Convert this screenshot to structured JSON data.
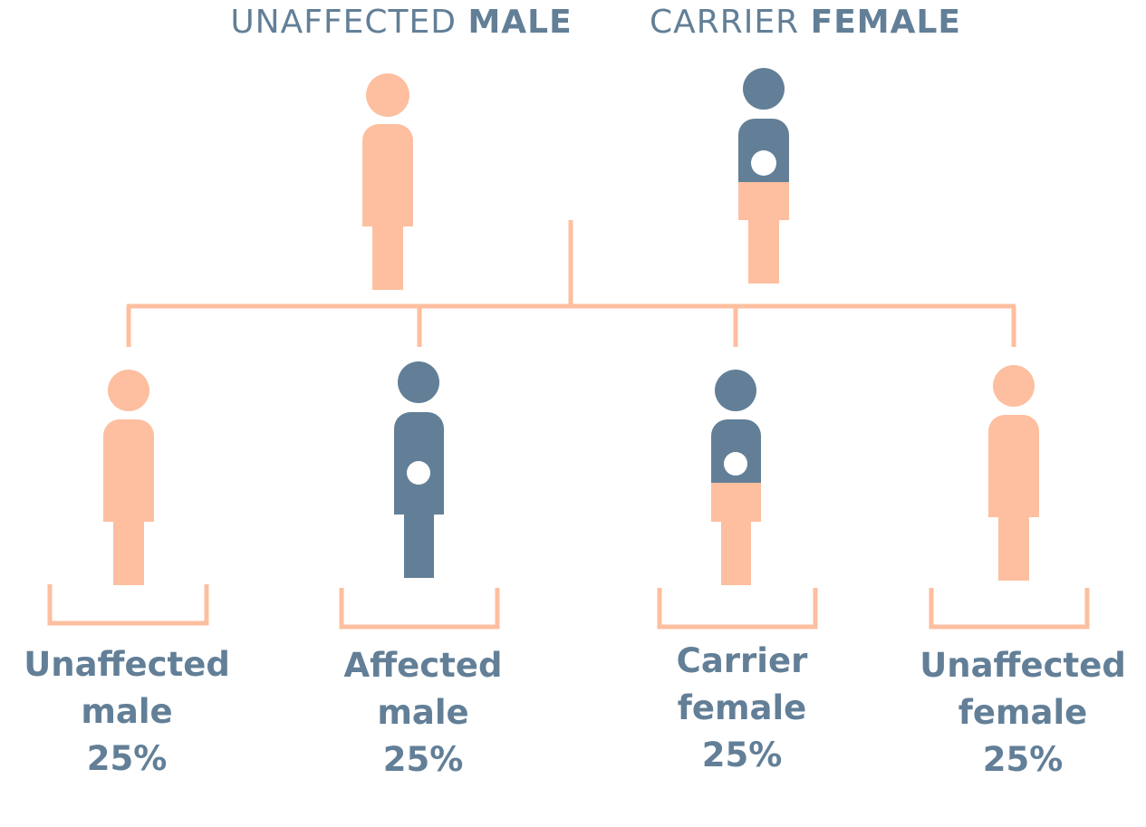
{
  "header": {
    "left": {
      "normal": "UNAFFECTED",
      "bold": "MALE"
    },
    "right": {
      "normal": "CARRIER",
      "bold": "FEMALE"
    }
  },
  "children": [
    {
      "lines": [
        "Unaffected",
        "male",
        "25%"
      ]
    },
    {
      "lines": [
        "Affected",
        "male",
        "25%"
      ]
    },
    {
      "lines": [
        "Carrier",
        "female",
        "25%"
      ]
    },
    {
      "lines": [
        "Unaffected",
        "female",
        "25%"
      ]
    }
  ]
}
